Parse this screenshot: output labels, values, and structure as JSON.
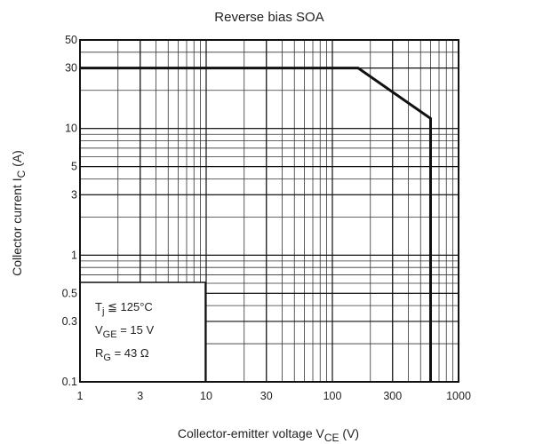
{
  "chart_data": {
    "type": "line",
    "title": "Reverse bias SOA",
    "x_label": [
      "Collector-emitter voltage  V",
      "CE",
      "  (V)"
    ],
    "y_label": [
      "Collector current  I",
      "C",
      "  (A)"
    ],
    "x": [
      1,
      160,
      600,
      600
    ],
    "series": [
      {
        "color": "#111111",
        "values": [
          30,
          30,
          12,
          0.1
        ]
      }
    ],
    "xlim": [
      1,
      1000
    ],
    "ylim": [
      0.1,
      50
    ],
    "xticks": [
      1,
      3,
      10,
      30,
      100,
      300,
      1000
    ],
    "yticks": [
      0.1,
      0.3,
      0.5,
      1,
      3,
      5,
      10,
      30,
      50
    ],
    "xscale": "log",
    "yscale": "log",
    "grid": true,
    "annotations": [
      [
        "T",
        "j",
        " ≦ 125°C"
      ],
      [
        "V",
        "GE",
        " = 15 V"
      ],
      [
        "R",
        "G",
        " = 43 Ω"
      ]
    ]
  }
}
